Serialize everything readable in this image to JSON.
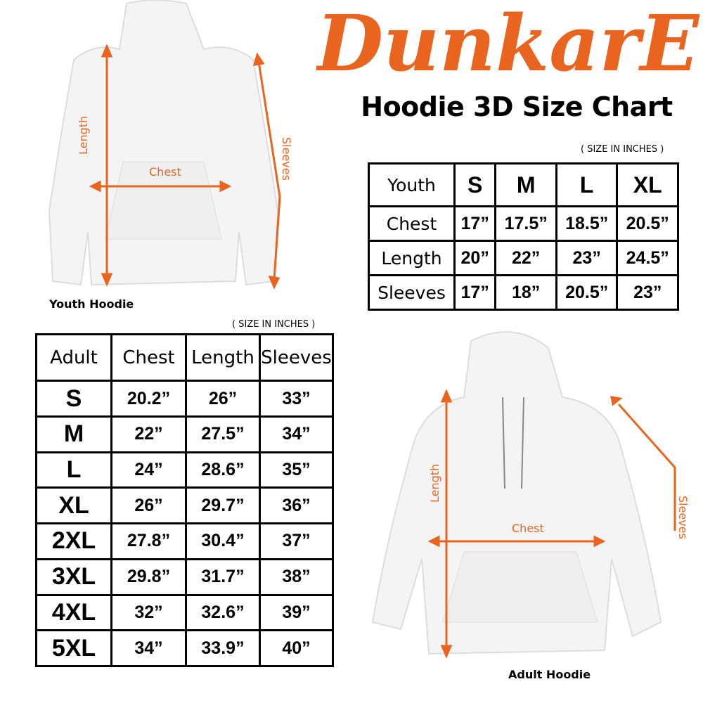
{
  "brand": {
    "logo_text": "DunkarE",
    "color": "#e8641f"
  },
  "title": "Hoodie 3D Size Chart",
  "youth": {
    "caption": "Youth Hoodie",
    "labels": {
      "length": "Length",
      "chest": "Chest",
      "sleeves": "Sleeves"
    },
    "unit_note": "( SIZE IN INCHES )",
    "table": {
      "header": [
        "Youth",
        "S",
        "M",
        "L",
        "XL"
      ],
      "rows": [
        [
          "Chest",
          "17”",
          "17.5”",
          "18.5”",
          "20.5”"
        ],
        [
          "Length",
          "20”",
          "22”",
          "23”",
          "24.5”"
        ],
        [
          "Sleeves",
          "17”",
          "18”",
          "20.5”",
          "23”"
        ]
      ]
    }
  },
  "adult": {
    "caption": "Adult Hoodie",
    "labels": {
      "length": "Length",
      "chest": "Chest",
      "sleeves": "Sleeves"
    },
    "unit_note": "( SIZE IN INCHES )",
    "table": {
      "header": [
        "Adult",
        "Chest",
        "Length",
        "Sleeves"
      ],
      "rows": [
        [
          "S",
          "20.2”",
          "26”",
          "33”"
        ],
        [
          "M",
          "22”",
          "27.5”",
          "34”"
        ],
        [
          "L",
          "24”",
          "28.6”",
          "35”"
        ],
        [
          "XL",
          "26”",
          "29.7”",
          "36”"
        ],
        [
          "2XL",
          "27.8”",
          "30.4”",
          "37”"
        ],
        [
          "3XL",
          "29.8”",
          "31.7”",
          "38”"
        ],
        [
          "4XL",
          "32”",
          "32.6”",
          "39”"
        ],
        [
          "5XL",
          "34”",
          "33.9”",
          "40”"
        ]
      ]
    }
  }
}
